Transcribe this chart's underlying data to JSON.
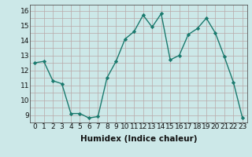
{
  "xlabel": "Humidex (Indice chaleur)",
  "x_values": [
    0,
    1,
    2,
    3,
    4,
    5,
    6,
    7,
    8,
    9,
    10,
    11,
    12,
    13,
    14,
    15,
    16,
    17,
    18,
    19,
    20,
    21,
    22,
    23
  ],
  "y_values": [
    12.5,
    12.6,
    11.3,
    11.1,
    9.1,
    9.1,
    8.8,
    8.9,
    11.5,
    12.6,
    14.1,
    14.6,
    15.7,
    14.9,
    15.8,
    12.7,
    13.0,
    14.4,
    14.8,
    15.5,
    14.5,
    12.9,
    11.2,
    8.8
  ],
  "line_color": "#1a7a6e",
  "marker": "D",
  "marker_size": 2.2,
  "background_color": "#cce8e8",
  "grid_color_major": "#b8a8a8",
  "grid_color_minor": "#d4c4c4",
  "ylim": [
    8.5,
    16.4
  ],
  "yticks": [
    9,
    10,
    11,
    12,
    13,
    14,
    15,
    16
  ],
  "xticks": [
    0,
    1,
    2,
    3,
    4,
    5,
    6,
    7,
    8,
    9,
    10,
    11,
    12,
    13,
    14,
    15,
    16,
    17,
    18,
    19,
    20,
    21,
    22,
    23
  ],
  "tick_fontsize": 6.5,
  "xlabel_fontsize": 7.5,
  "line_width": 1.0
}
